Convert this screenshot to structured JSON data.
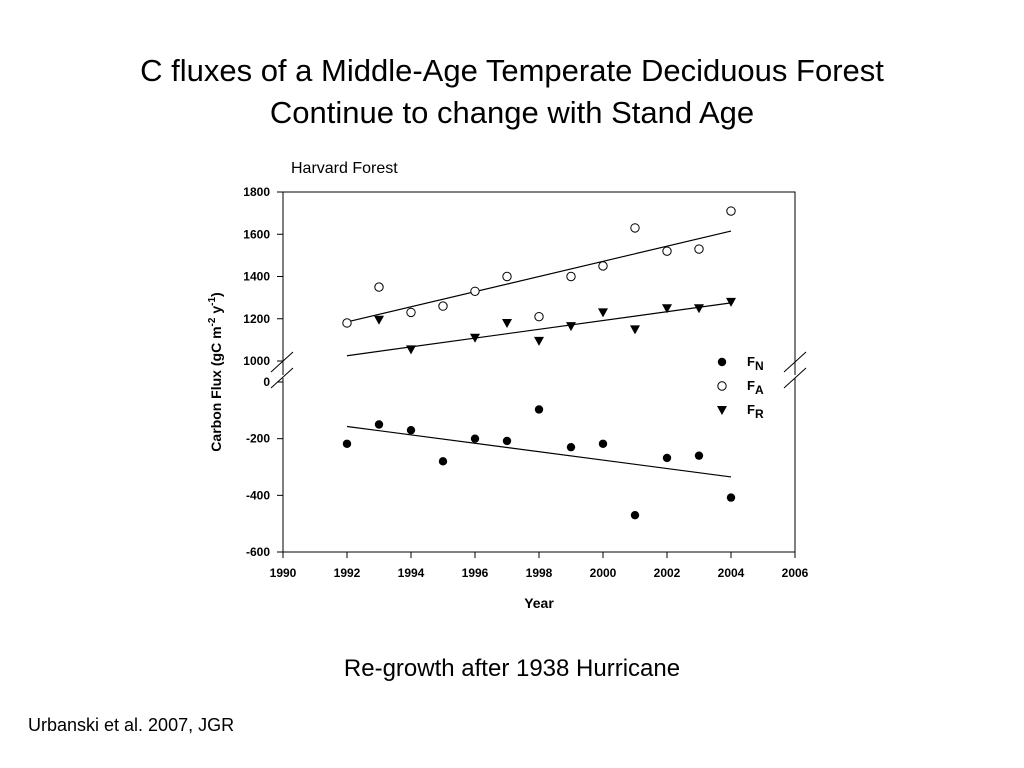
{
  "slide": {
    "title_line1": "C fluxes of a Middle-Age Temperate Deciduous Forest",
    "title_line2": "Continue to change with Stand Age",
    "caption": "Re-growth after 1938 Hurricane",
    "citation": "Urbanski et al. 2007, JGR"
  },
  "chart_data": {
    "type": "scatter",
    "title": "Harvard Forest",
    "xlabel": "Year",
    "ylabel": "Carbon Flux (gC m-2 y-1)",
    "xlim": [
      1990,
      2006
    ],
    "x_ticks": [
      1990,
      1992,
      1994,
      1996,
      1998,
      2000,
      2002,
      2004,
      2006
    ],
    "axis_break": true,
    "upper_panel": {
      "ylim": [
        1000,
        1800
      ],
      "y_ticks": [
        1000,
        1200,
        1400,
        1600,
        1800
      ]
    },
    "lower_panel": {
      "ylim": [
        -600,
        0
      ],
      "y_ticks": [
        -600,
        -400,
        -200,
        0
      ]
    },
    "legend_position": "right",
    "series": [
      {
        "name": "FN",
        "label_main": "F",
        "label_sub": "N",
        "marker": "filled-circle",
        "panel": "lower",
        "x": [
          1992,
          1993,
          1994,
          1995,
          1996,
          1997,
          1998,
          1999,
          2000,
          2001,
          2002,
          2003,
          2004
        ],
        "y": [
          -218,
          -150,
          -170,
          -280,
          -200,
          -208,
          -97,
          -230,
          -218,
          -470,
          -268,
          -260,
          -408
        ],
        "trend": [
          [
            1992,
            -157
          ],
          [
            2004,
            -335
          ]
        ]
      },
      {
        "name": "FA",
        "label_main": "F",
        "label_sub": "A",
        "marker": "open-circle",
        "panel": "upper",
        "x": [
          1992,
          1993,
          1994,
          1995,
          1996,
          1997,
          1998,
          1999,
          2000,
          2001,
          2002,
          2003,
          2004
        ],
        "y": [
          1180,
          1350,
          1230,
          1260,
          1330,
          1400,
          1210,
          1400,
          1450,
          1630,
          1520,
          1530,
          1710
        ],
        "trend": [
          [
            1992,
            1185
          ],
          [
            2004,
            1615
          ]
        ]
      },
      {
        "name": "FR",
        "label_main": "F",
        "label_sub": "R",
        "marker": "filled-triangle-down",
        "panel": "upper",
        "x": [
          1993,
          1994,
          1996,
          1997,
          1998,
          1999,
          2000,
          2001,
          2002,
          2003,
          2004
        ],
        "y": [
          1195,
          1055,
          1110,
          1180,
          1095,
          1165,
          1230,
          1150,
          1250,
          1250,
          1280
        ],
        "trend": [
          [
            1992,
            1025
          ],
          [
            2004,
            1275
          ]
        ]
      }
    ]
  }
}
